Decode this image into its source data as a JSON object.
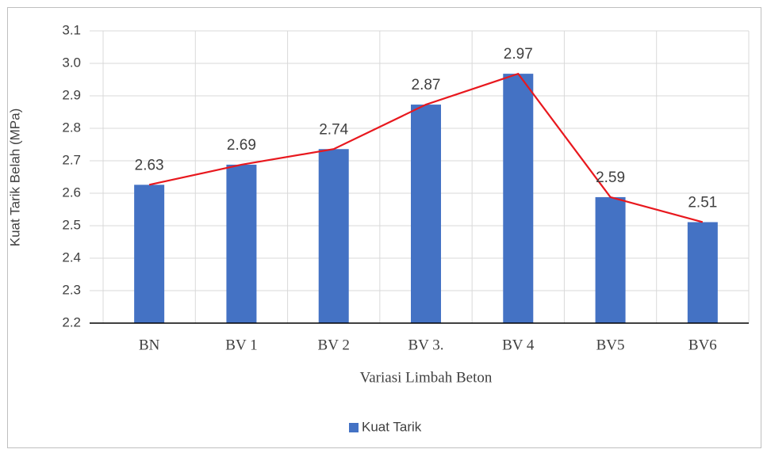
{
  "chart_data": {
    "type": "bar",
    "y_label": "Kuat Tarik Belah (MPa)",
    "x_label": "Variasi Limbah Beton",
    "categories": [
      "BN",
      "BV 1",
      "BV 2",
      "BV 3.",
      "BV 4",
      "BV5",
      "BV6"
    ],
    "series": [
      {
        "name": "Kuat Tarik",
        "color": "#4472c4",
        "values": [
          2.626,
          2.688,
          2.736,
          2.873,
          2.968,
          2.588,
          2.511
        ],
        "value_labels": [
          "2.63",
          "2.69",
          "2.74",
          "2.87",
          "2.97",
          "2.59",
          "2.51"
        ]
      }
    ],
    "trend_line_color": "#e8181e",
    "ylim": [
      2.2,
      3.1
    ],
    "yticks": [
      2.2,
      2.3,
      2.4,
      2.5,
      2.6,
      2.7,
      2.8,
      2.9,
      {
        "value": 3,
        "label": "3.0"
      },
      3.1
    ],
    "grid": true,
    "legend": "bottom"
  }
}
